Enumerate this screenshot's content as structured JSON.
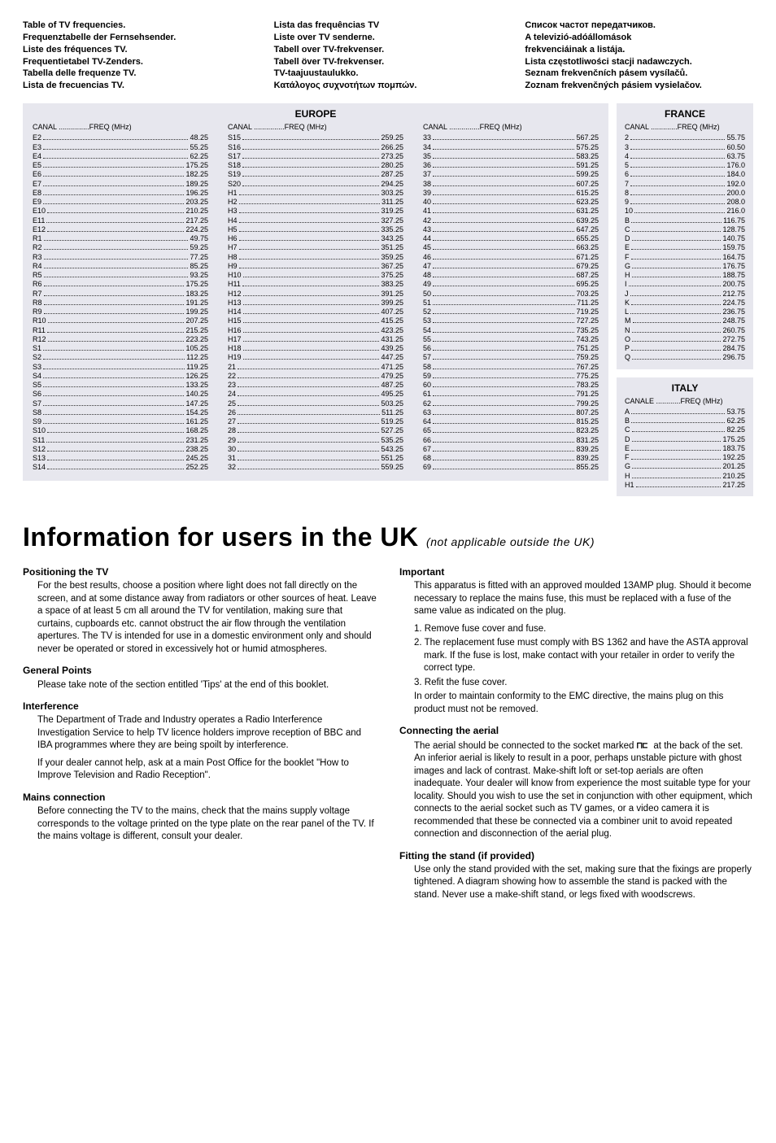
{
  "header": {
    "col1": [
      "Table of TV frequencies.",
      "Frequenztabelle der Fernsehsender.",
      "Liste des fréquences TV.",
      "Frequentietabel TV-Zenders.",
      "Tabella delle frequenze TV.",
      "Lista de frecuencias TV."
    ],
    "col2": [
      "Lista das frequências TV",
      "Liste over TV senderne.",
      "Tabell over TV-frekvenser.",
      "Tabell över TV-frekvenser.",
      "TV-taajuustaulukko.",
      "Κατάλογος συχνοτήτων πομπών."
    ],
    "col3": [
      "Список частот передатчиков.",
      "A televizió-adóállomások",
      "frekvenciáinak a listája.",
      "Lista częstotliwości stacji nadawczych.",
      "Seznam frekvenčních pásem vysílačů.",
      "Zoznam frekvenčných pásiem vysielačov."
    ]
  },
  "europe": {
    "title": "EUROPE",
    "head": "CANAL ...............FREQ (MHz)",
    "cols": [
      [
        [
          "E2",
          "48.25"
        ],
        [
          "E3",
          "55.25"
        ],
        [
          "E4",
          "62.25"
        ],
        [
          "E5",
          "175.25"
        ],
        [
          "E6",
          "182.25"
        ],
        [
          "E7",
          "189.25"
        ],
        [
          "E8",
          "196.25"
        ],
        [
          "E9",
          "203.25"
        ],
        [
          "E10",
          "210.25"
        ],
        [
          "E11",
          "217.25"
        ],
        [
          "E12",
          "224.25"
        ],
        [
          "R1",
          "49.75"
        ],
        [
          "R2",
          "59.25"
        ],
        [
          "R3",
          "77.25"
        ],
        [
          "R4",
          "85.25"
        ],
        [
          "R5",
          "93.25"
        ],
        [
          "R6",
          "175.25"
        ],
        [
          "R7",
          "183.25"
        ],
        [
          "R8",
          "191.25"
        ],
        [
          "R9",
          "199.25"
        ],
        [
          "R10",
          "207.25"
        ],
        [
          "R11",
          "215.25"
        ],
        [
          "R12",
          "223.25"
        ],
        [
          "S1",
          "105.25"
        ],
        [
          "S2",
          "112.25"
        ],
        [
          "S3",
          "119.25"
        ],
        [
          "S4",
          "126.25"
        ],
        [
          "S5",
          "133.25"
        ],
        [
          "S6",
          "140.25"
        ],
        [
          "S7",
          "147.25"
        ],
        [
          "S8",
          "154.25"
        ],
        [
          "S9",
          "161.25"
        ],
        [
          "S10",
          "168.25"
        ],
        [
          "S11",
          "231.25"
        ],
        [
          "S12",
          "238.25"
        ],
        [
          "S13",
          "245.25"
        ],
        [
          "S14",
          "252.25"
        ]
      ],
      [
        [
          "S15",
          "259.25"
        ],
        [
          "S16",
          "266.25"
        ],
        [
          "S17",
          "273.25"
        ],
        [
          "S18",
          "280.25"
        ],
        [
          "S19",
          "287.25"
        ],
        [
          "S20",
          "294.25"
        ],
        [
          "H1",
          "303.25"
        ],
        [
          "H2",
          "311.25"
        ],
        [
          "H3",
          "319.25"
        ],
        [
          "H4",
          "327.25"
        ],
        [
          "H5",
          "335.25"
        ],
        [
          "H6",
          "343.25"
        ],
        [
          "H7",
          "351.25"
        ],
        [
          "H8",
          "359.25"
        ],
        [
          "H9",
          "367.25"
        ],
        [
          "H10",
          "375.25"
        ],
        [
          "H11",
          "383.25"
        ],
        [
          "H12",
          "391.25"
        ],
        [
          "H13",
          "399.25"
        ],
        [
          "H14",
          "407.25"
        ],
        [
          "H15",
          "415.25"
        ],
        [
          "H16",
          "423.25"
        ],
        [
          "H17",
          "431.25"
        ],
        [
          "H18",
          "439.25"
        ],
        [
          "H19",
          "447.25"
        ],
        [
          "21",
          "471.25"
        ],
        [
          "22",
          "479.25"
        ],
        [
          "23",
          "487.25"
        ],
        [
          "24",
          "495.25"
        ],
        [
          "25",
          "503.25"
        ],
        [
          "26",
          "511.25"
        ],
        [
          "27",
          "519.25"
        ],
        [
          "28",
          "527.25"
        ],
        [
          "29",
          "535.25"
        ],
        [
          "30",
          "543.25"
        ],
        [
          "31",
          "551.25"
        ],
        [
          "32",
          "559.25"
        ]
      ],
      [
        [
          "33",
          "567.25"
        ],
        [
          "34",
          "575.25"
        ],
        [
          "35",
          "583.25"
        ],
        [
          "36",
          "591.25"
        ],
        [
          "37",
          "599.25"
        ],
        [
          "38",
          "607.25"
        ],
        [
          "39",
          "615.25"
        ],
        [
          "40",
          "623.25"
        ],
        [
          "41",
          "631.25"
        ],
        [
          "42",
          "639.25"
        ],
        [
          "43",
          "647.25"
        ],
        [
          "44",
          "655.25"
        ],
        [
          "45",
          "663.25"
        ],
        [
          "46",
          "671.25"
        ],
        [
          "47",
          "679.25"
        ],
        [
          "48",
          "687.25"
        ],
        [
          "49",
          "695.25"
        ],
        [
          "50",
          "703.25"
        ],
        [
          "51",
          "711.25"
        ],
        [
          "52",
          "719.25"
        ],
        [
          "53",
          "727.25"
        ],
        [
          "54",
          "735.25"
        ],
        [
          "55",
          "743.25"
        ],
        [
          "56",
          "751.25"
        ],
        [
          "57",
          "759.25"
        ],
        [
          "58",
          "767.25"
        ],
        [
          "59",
          "775.25"
        ],
        [
          "60",
          "783.25"
        ],
        [
          "61",
          "791.25"
        ],
        [
          "62",
          "799.25"
        ],
        [
          "63",
          "807.25"
        ],
        [
          "64",
          "815.25"
        ],
        [
          "65",
          "823.25"
        ],
        [
          "66",
          "831.25"
        ],
        [
          "67",
          "839.25"
        ],
        [
          "68",
          "839.25"
        ],
        [
          "69",
          "855.25"
        ]
      ]
    ]
  },
  "france": {
    "title": "FRANCE",
    "head": "CANAL .............FREQ (MHz)",
    "rows": [
      [
        "2",
        "55.75"
      ],
      [
        "3",
        "60.50"
      ],
      [
        "4",
        "63.75"
      ],
      [
        "5",
        "176.0"
      ],
      [
        "6",
        "184.0"
      ],
      [
        "7",
        "192.0"
      ],
      [
        "8",
        "200.0"
      ],
      [
        "9",
        "208.0"
      ],
      [
        "10",
        "216.0"
      ],
      [
        "B",
        "116.75"
      ],
      [
        "C",
        "128.75"
      ],
      [
        "D",
        "140.75"
      ],
      [
        "E",
        "159.75"
      ],
      [
        "F",
        "164.75"
      ],
      [
        "G",
        "176.75"
      ],
      [
        "H",
        "188.75"
      ],
      [
        "I",
        "200.75"
      ],
      [
        "J",
        "212.75"
      ],
      [
        "K",
        "224.75"
      ],
      [
        "L",
        "236.75"
      ],
      [
        "M",
        "248.75"
      ],
      [
        "N",
        "260.75"
      ],
      [
        "O",
        "272.75"
      ],
      [
        "P",
        "284.75"
      ],
      [
        "Q",
        "296.75"
      ]
    ]
  },
  "italy": {
    "title": "ITALY",
    "head": "CANALE ............FREQ (MHz)",
    "rows": [
      [
        "A",
        "53.75"
      ],
      [
        "B",
        "62.25"
      ],
      [
        "C",
        "82.25"
      ],
      [
        "D",
        "175.25"
      ],
      [
        "E",
        "183.75"
      ],
      [
        "F",
        "192.25"
      ],
      [
        "G",
        "201.25"
      ],
      [
        "H",
        "210.25"
      ],
      [
        "H1",
        "217.25"
      ]
    ]
  },
  "main_title": "Information for users in the UK",
  "main_sub": "(not applicable outside the UK)",
  "left": {
    "h1": "Positioning the TV",
    "p1": "For the best results, choose a position where light does not fall directly on the screen, and at some distance away from radiators or other sources of heat. Leave a space of at least 5 cm all around the TV for ventilation, making sure that curtains, cupboards etc. cannot obstruct the air flow through the ventilation apertures. The TV is intended for use in a domestic environment only and should never be operated or stored in excessively hot or humid atmospheres.",
    "h2": "General Points",
    "p2": "Please take note of the section entitled 'Tips' at the end of this booklet.",
    "h3": "Interference",
    "p3a": "The Department of Trade and Industry operates a Radio Interference Investigation Service to help TV licence holders improve reception of BBC and IBA programmes where they are being spoilt by interference.",
    "p3b": "If your dealer cannot help, ask at a main Post Office for the booklet \"How to Improve Television and Radio Reception\".",
    "h4": "Mains connection",
    "p4": "Before connecting the TV to the mains, check that the mains supply voltage corresponds to the voltage printed on the type plate on the rear panel of the TV. If the mains voltage is different, consult your dealer."
  },
  "right": {
    "h1": "Important",
    "p1": "This apparatus is fitted with an approved moulded 13AMP plug. Should it become necessary to replace the mains fuse, this must be replaced with a fuse of the same value as indicated on the plug.",
    "l1": "1. Remove fuse cover and fuse.",
    "l2": "2. The replacement fuse must comply with BS 1362 and have the ASTA approval mark. If the fuse is lost, make contact with your retailer in order to verify the correct type.",
    "l3": "3. Refit the fuse cover.",
    "p2": "In order to maintain conformity to the EMC directive, the mains plug on this product must not be removed.",
    "h2": "Connecting the aerial",
    "p3a": "The aerial should be connected to the socket marked",
    "p3b": " at the back of the set. An inferior aerial is likely to result in a poor, perhaps unstable picture with ghost images and lack of contrast. Make-shift loft or set-top aerials are often inadequate. Your dealer will know from experience the most suitable type for your locality. Should you wish to use the set in conjunction with other equipment, which connects to the aerial socket such as TV games, or a video camera it is recommended that these be connected via a combiner unit to avoid repeated connection and disconnection of the aerial plug.",
    "h3": "Fitting the stand (if provided)",
    "p4": "Use only the stand provided with the set, making sure that the fixings are properly tightened. A diagram showing how to assemble the stand is packed with the stand. Never use a make-shift stand, or legs fixed with woodscrews."
  }
}
